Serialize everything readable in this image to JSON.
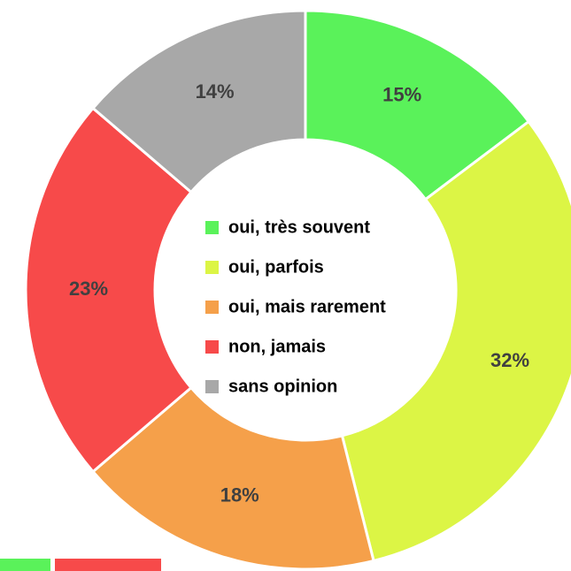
{
  "chart_data": {
    "type": "pie",
    "categories": [
      "oui, très souvent",
      "oui, parfois",
      "oui, mais rarement",
      "non, jamais",
      "sans opinion"
    ],
    "values": [
      15,
      32,
      18,
      23,
      14
    ],
    "value_labels": [
      "15%",
      "32%",
      "18%",
      "23%",
      "14%"
    ],
    "colors": [
      "#5af25a",
      "#dcf545",
      "#f5a04a",
      "#f74a4a",
      "#a8a8a8"
    ],
    "donut": true
  }
}
